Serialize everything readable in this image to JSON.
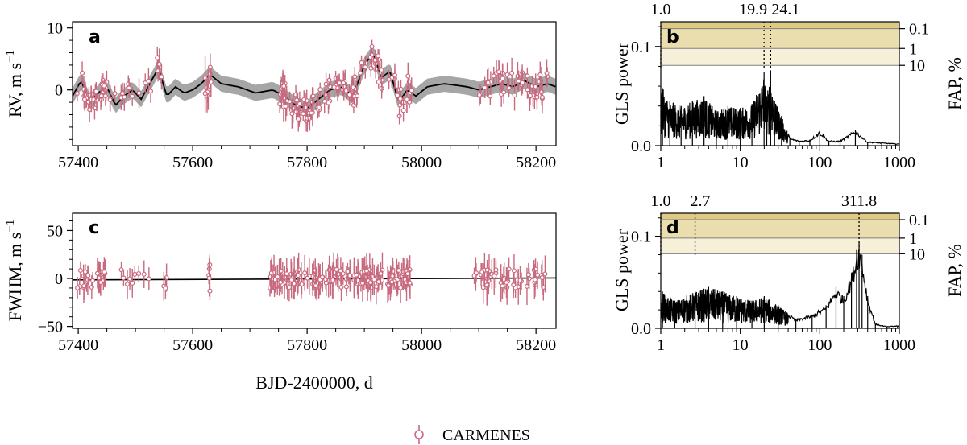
{
  "colors": {
    "data": "#c8697e",
    "model": "#000000",
    "band": "#a6a6a6",
    "fap_0_1": "#dfca85",
    "fap_1": "#ebdeae",
    "fap_10": "#f6f0d9"
  },
  "chart_data": [
    {
      "id": "a",
      "type": "scatter",
      "panel_label": "a",
      "ylabel": "RV, m s⁻¹",
      "ylabel_main": "RV, m s",
      "ylabel_exp": "−1",
      "xlim": [
        57390,
        58235
      ],
      "ylim": [
        -9,
        11
      ],
      "xticks": [
        "57400",
        "57600",
        "57800",
        "58000",
        "58200"
      ],
      "yticks": [
        "0",
        "10"
      ],
      "model_curve": {
        "x": [
          57390,
          57405,
          57420,
          57435,
          57450,
          57465,
          57480,
          57495,
          57510,
          57525,
          57540,
          57555,
          57570,
          57585,
          57600,
          57615,
          57630,
          57650,
          57680,
          57710,
          57740,
          57760,
          57780,
          57800,
          57820,
          57840,
          57860,
          57880,
          57900,
          57915,
          57930,
          57945,
          57960,
          57975,
          57990,
          58010,
          58040,
          58080,
          58100,
          58120,
          58140,
          58160,
          58180,
          58200,
          58220,
          58235
        ],
        "y": [
          -1,
          1.5,
          -2,
          -0.5,
          0.5,
          -2.5,
          -1,
          0,
          -1.5,
          1,
          3.5,
          -1,
          0.5,
          -0.5,
          0,
          1,
          2.5,
          1,
          0.5,
          -0.5,
          0,
          -1,
          -2.5,
          -3,
          -1.5,
          0,
          0.5,
          -1,
          4,
          6,
          2,
          3,
          -2,
          0,
          -1,
          0.5,
          1,
          0.5,
          0,
          0.5,
          1,
          0.5,
          1.5,
          0.5,
          1,
          0.5
        ],
        "band_halfwidth": 1.3
      }
    },
    {
      "id": "b",
      "type": "line",
      "panel_label": "b",
      "xscale": "log",
      "ylabel": "GLS power",
      "ylabel_right": "FAP, %",
      "xlim": [
        1,
        1000
      ],
      "ylim": [
        0,
        0.125
      ],
      "xticks": [
        "1",
        "10",
        "100",
        "1000"
      ],
      "yticks": [
        "0.0",
        "0.1"
      ],
      "fap_levels": [
        {
          "label": "0.1",
          "power": 0.118
        },
        {
          "label": "1",
          "power": 0.098
        },
        {
          "label": "10",
          "power": 0.081
        }
      ],
      "marked_periods": [
        {
          "label": "1.0",
          "period": 1.0
        },
        {
          "label": "19.9",
          "period": 19.9
        },
        {
          "label": "24.1",
          "period": 24.1
        }
      ],
      "peaks": {
        "period": [
          1.05,
          1.3,
          1.8,
          2.5,
          3.5,
          5,
          7,
          10,
          14,
          19.9,
          21.5,
          24.1,
          27,
          33,
          42,
          55,
          75,
          100,
          130,
          180,
          280,
          400,
          600,
          900
        ],
        "power": [
          0.058,
          0.045,
          0.04,
          0.045,
          0.05,
          0.035,
          0.04,
          0.038,
          0.042,
          0.074,
          0.05,
          0.076,
          0.045,
          0.03,
          0.008,
          0.005,
          0.006,
          0.015,
          0.005,
          0.005,
          0.016,
          0.004,
          0.003,
          0.002
        ]
      }
    },
    {
      "id": "c",
      "type": "scatter",
      "panel_label": "c",
      "ylabel": "FWHM, m s⁻¹",
      "ylabel_main": "FWHM, m s",
      "ylabel_exp": "−1",
      "xlabel": "BJD-2400000, d",
      "xlim": [
        57390,
        58235
      ],
      "ylim": [
        -52,
        68
      ],
      "xticks": [
        "57400",
        "57600",
        "57800",
        "58000",
        "58200"
      ],
      "yticks": [
        "−50",
        "0",
        "50"
      ],
      "model_line": {
        "x": [
          57390,
          58235
        ],
        "y": [
          -1.5,
          0.5
        ]
      }
    },
    {
      "id": "d",
      "type": "line",
      "panel_label": "d",
      "xscale": "log",
      "ylabel": "GLS power",
      "ylabel_right": "FAP, %",
      "xlim": [
        1,
        1000
      ],
      "ylim": [
        0,
        0.125
      ],
      "xticks": [
        "1",
        "10",
        "100",
        "1000"
      ],
      "yticks": [
        "0.0",
        "0.1"
      ],
      "fap_levels": [
        {
          "label": "0.1",
          "power": 0.118
        },
        {
          "label": "1",
          "power": 0.098
        },
        {
          "label": "10",
          "power": 0.081
        }
      ],
      "marked_periods": [
        {
          "label": "1.0",
          "period": 1.0
        },
        {
          "label": "2.7",
          "period": 2.7
        },
        {
          "label": "311.8",
          "period": 311.8
        }
      ],
      "peaks": {
        "period": [
          1.05,
          1.5,
          2.7,
          4,
          6,
          9,
          14,
          20,
          30,
          50,
          80,
          120,
          160,
          200,
          250,
          290,
          311.8,
          340,
          400,
          500,
          700,
          950
        ],
        "power": [
          0.04,
          0.03,
          0.04,
          0.045,
          0.04,
          0.035,
          0.03,
          0.035,
          0.025,
          0.01,
          0.015,
          0.025,
          0.045,
          0.035,
          0.06,
          0.085,
          0.094,
          0.08,
          0.035,
          0.005,
          0.002,
          0.003
        ]
      }
    }
  ],
  "legend": {
    "label": "CARMENES"
  }
}
